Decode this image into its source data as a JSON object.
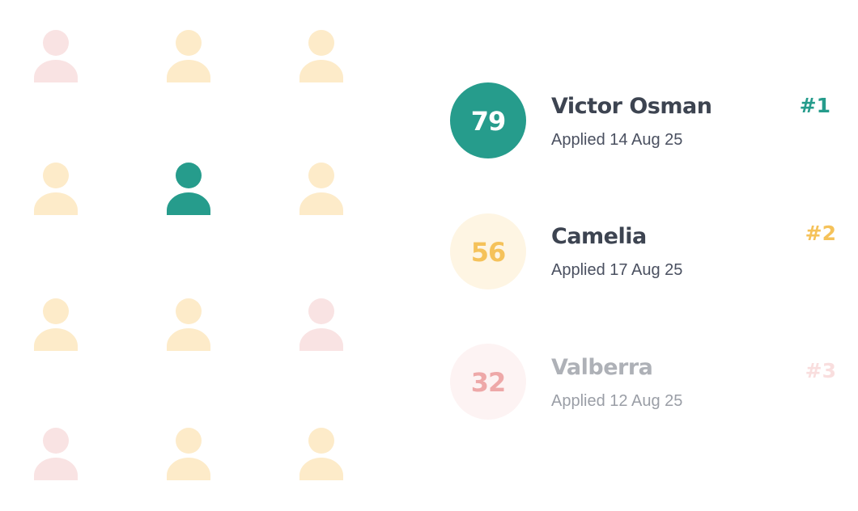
{
  "candidates": [
    {
      "score": 79,
      "name": "Victor Osman",
      "applied": "Applied 14 Aug 25",
      "rank": "#1"
    },
    {
      "score": 56,
      "name": "Camelia",
      "applied": "Applied 17 Aug 25",
      "rank": "#2"
    },
    {
      "score": 32,
      "name": "Valberra",
      "applied": "Applied 12 Aug 25",
      "rank": "#3"
    }
  ]
}
